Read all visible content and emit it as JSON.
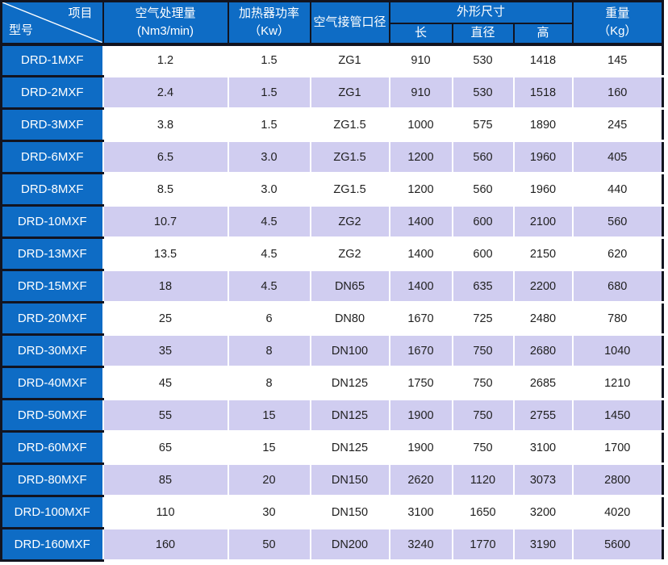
{
  "chart_data": {
    "type": "table",
    "corner": {
      "top_right_label": "项目",
      "bottom_left_label": "型号"
    },
    "headers": {
      "capacity": {
        "line1": "空气处理量",
        "line2": "(Nm3/min)"
      },
      "heater_power": {
        "line1": "加热器功率",
        "line2": "（Kw）"
      },
      "pipe_diameter": "空气接管口径",
      "dimensions": {
        "label": "外形尺寸",
        "length": "长",
        "diameter": "直径",
        "height": "高"
      },
      "weight": {
        "line1": "重量",
        "line2": "（Kg）"
      }
    },
    "rows": [
      {
        "model": "DRD-1MXF",
        "values": [
          "1.2",
          "1.5",
          "ZG1",
          "910",
          "530",
          "1418",
          "145"
        ]
      },
      {
        "model": "DRD-2MXF",
        "values": [
          "2.4",
          "1.5",
          "ZG1",
          "910",
          "530",
          "1518",
          "160"
        ]
      },
      {
        "model": "DRD-3MXF",
        "values": [
          "3.8",
          "1.5",
          "ZG1.5",
          "1000",
          "575",
          "1890",
          "245"
        ]
      },
      {
        "model": "DRD-6MXF",
        "values": [
          "6.5",
          "3.0",
          "ZG1.5",
          "1200",
          "560",
          "1960",
          "405"
        ]
      },
      {
        "model": "DRD-8MXF",
        "values": [
          "8.5",
          "3.0",
          "ZG1.5",
          "1200",
          "560",
          "1960",
          "440"
        ]
      },
      {
        "model": "DRD-10MXF",
        "values": [
          "10.7",
          "4.5",
          "ZG2",
          "1400",
          "600",
          "2100",
          "560"
        ]
      },
      {
        "model": "DRD-13MXF",
        "values": [
          "13.5",
          "4.5",
          "ZG2",
          "1400",
          "600",
          "2150",
          "620"
        ]
      },
      {
        "model": "DRD-15MXF",
        "values": [
          "18",
          "4.5",
          "DN65",
          "1400",
          "635",
          "2200",
          "680"
        ]
      },
      {
        "model": "DRD-20MXF",
        "values": [
          "25",
          "6",
          "DN80",
          "1670",
          "725",
          "2480",
          "780"
        ]
      },
      {
        "model": "DRD-30MXF",
        "values": [
          "35",
          "8",
          "DN100",
          "1670",
          "750",
          "2680",
          "1040"
        ]
      },
      {
        "model": "DRD-40MXF",
        "values": [
          "45",
          "8",
          "DN125",
          "1750",
          "750",
          "2685",
          "1210"
        ]
      },
      {
        "model": "DRD-50MXF",
        "values": [
          "55",
          "15",
          "DN125",
          "1900",
          "750",
          "2755",
          "1450"
        ]
      },
      {
        "model": "DRD-60MXF",
        "values": [
          "65",
          "15",
          "DN125",
          "1900",
          "750",
          "3100",
          "1700"
        ]
      },
      {
        "model": "DRD-80MXF",
        "values": [
          "85",
          "20",
          "DN150",
          "2620",
          "1120",
          "3073",
          "2800"
        ]
      },
      {
        "model": "DRD-100MXF",
        "values": [
          "110",
          "30",
          "DN150",
          "3100",
          "1650",
          "3200",
          "4020"
        ]
      },
      {
        "model": "DRD-160MXF",
        "values": [
          "160",
          "50",
          "DN200",
          "3240",
          "1770",
          "3190",
          "5600"
        ]
      }
    ],
    "colors": {
      "header_blue": "#0e6cc5",
      "row_base": "#ffffff",
      "row_alt": "#d0cdf0",
      "border_dark": "#121420",
      "header_text": "#ffffff",
      "body_text": "#1f1f1f"
    }
  }
}
